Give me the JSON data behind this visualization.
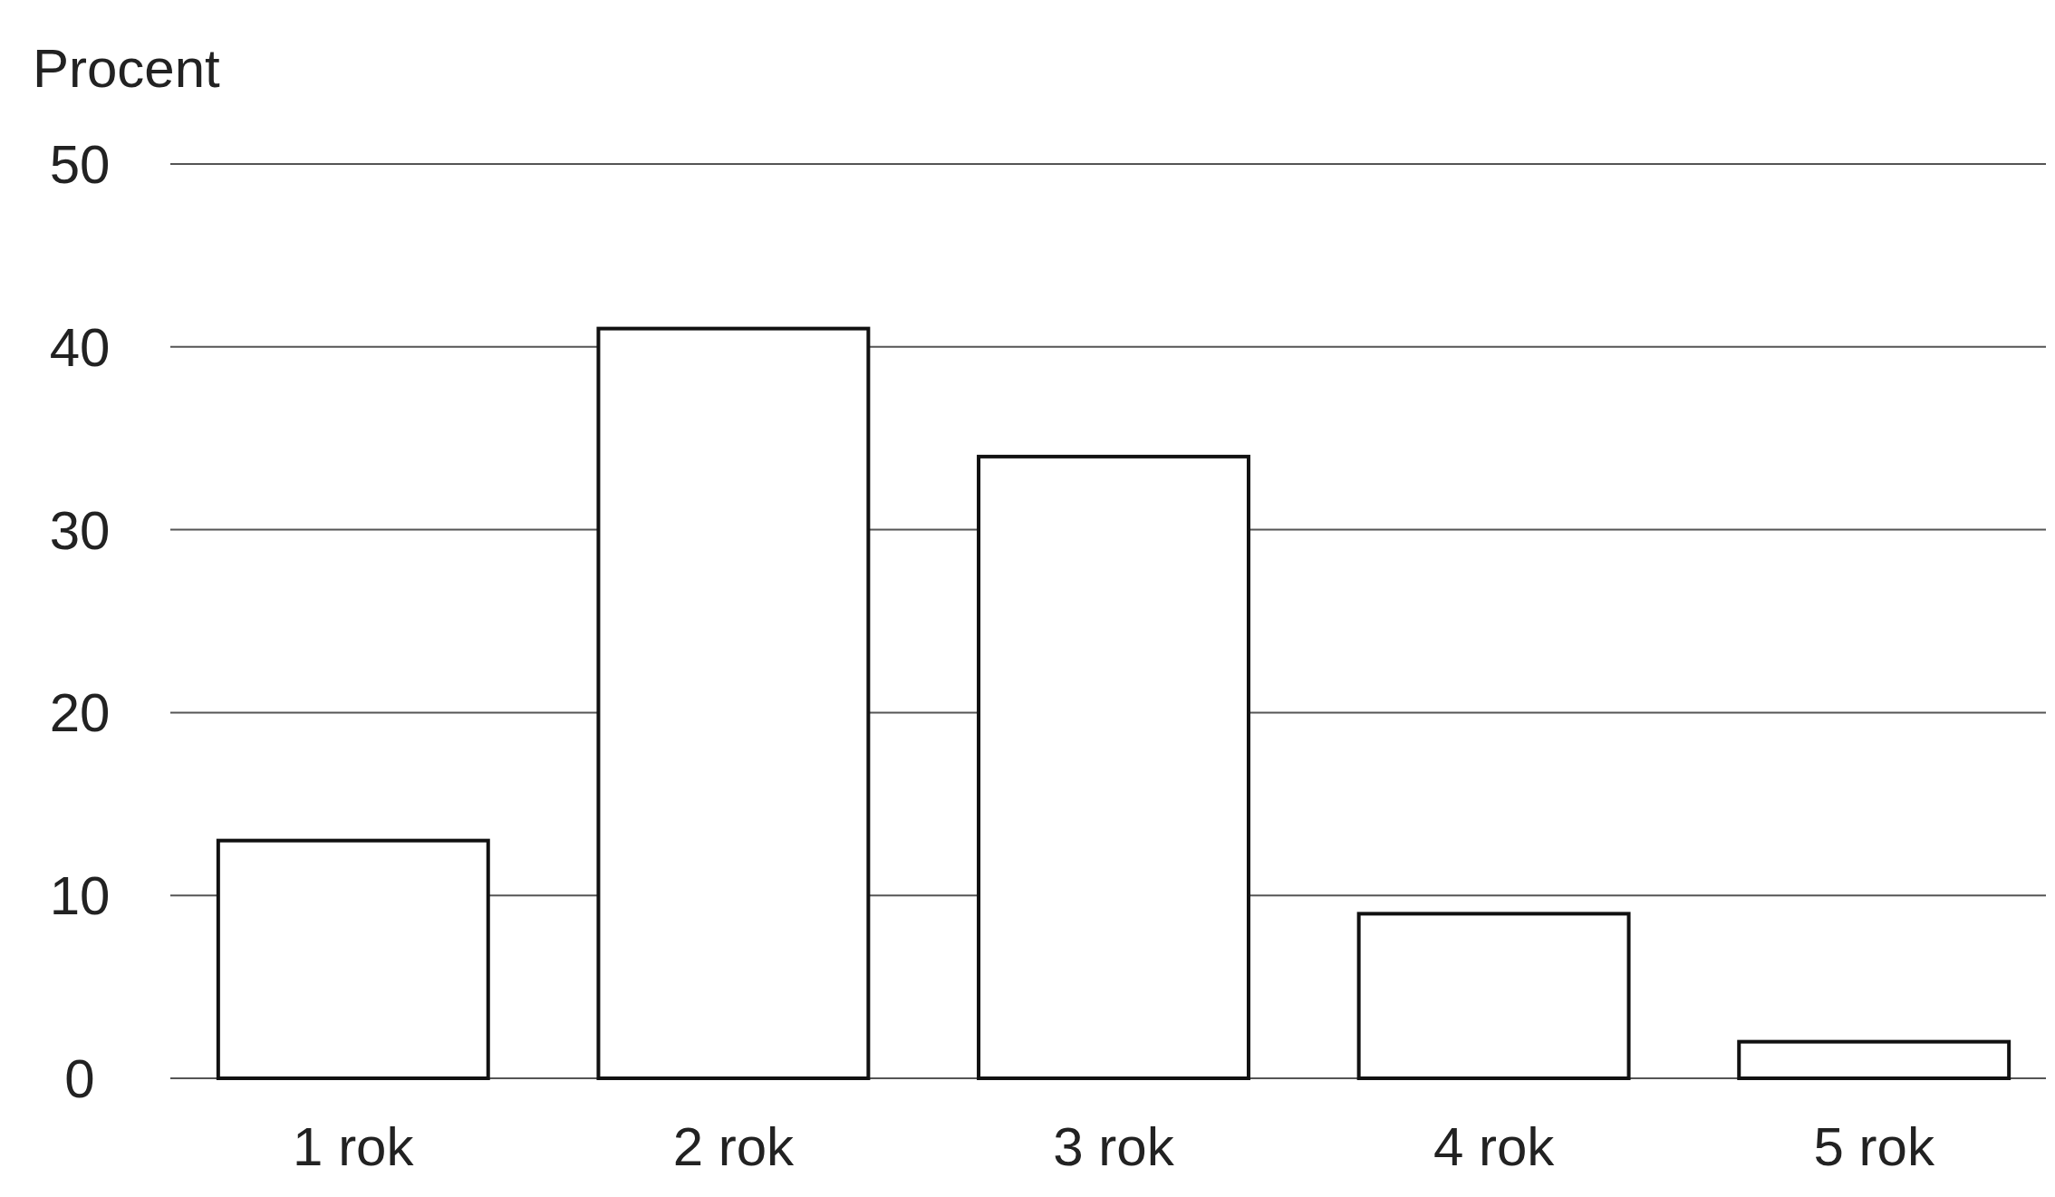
{
  "chart_data": {
    "type": "bar",
    "ylabel": "Procent",
    "categories": [
      "1 rok",
      "2 rok",
      "3 rok",
      "4 rok",
      "5 rok"
    ],
    "values": [
      13,
      41,
      34,
      9,
      2
    ],
    "color": "#ffffff",
    "ylim": [
      0,
      50
    ],
    "yticks": [
      0,
      10,
      20,
      30,
      40,
      50
    ],
    "grid": "y"
  }
}
